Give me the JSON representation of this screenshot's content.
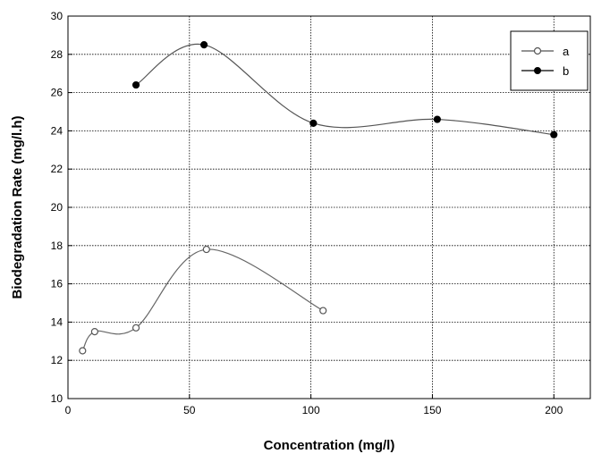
{
  "chart_data": {
    "type": "line",
    "title": "",
    "xlabel": "Concentration (mg/l)",
    "ylabel": "Biodegradation Rate (mg/l.h)",
    "xlim": [
      0,
      215
    ],
    "ylim": [
      10,
      30
    ],
    "xticks": [
      0,
      50,
      100,
      150,
      200
    ],
    "yticks": [
      10,
      12,
      14,
      16,
      18,
      20,
      22,
      24,
      26,
      28,
      30
    ],
    "grid": true,
    "legend_position": "top-right",
    "series": [
      {
        "name": "a",
        "marker": "open-circle",
        "x": [
          6,
          11,
          28,
          57,
          105
        ],
        "y": [
          12.5,
          13.5,
          13.7,
          17.8,
          14.6
        ]
      },
      {
        "name": "b",
        "marker": "filled-circle",
        "x": [
          28,
          56,
          101,
          152,
          200
        ],
        "y": [
          26.4,
          28.5,
          24.4,
          24.6,
          23.8
        ]
      }
    ]
  }
}
